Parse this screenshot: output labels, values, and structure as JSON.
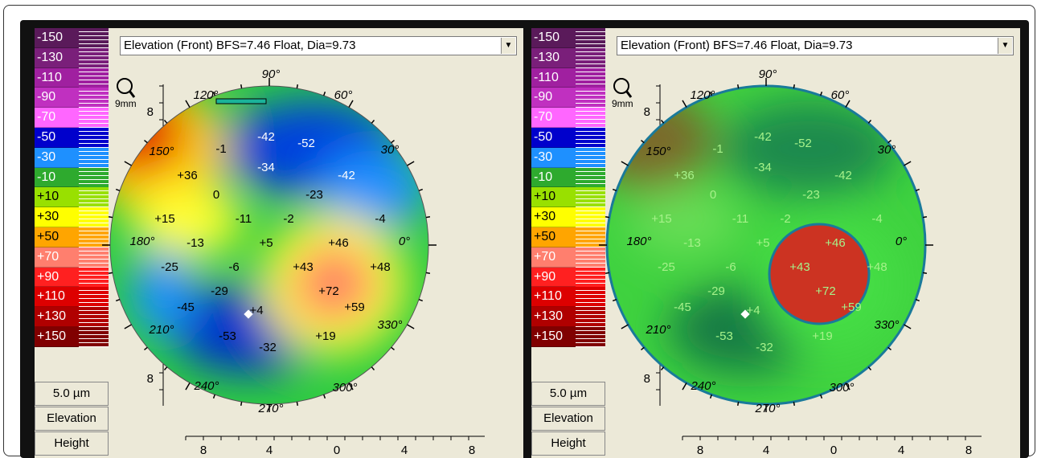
{
  "panels": [
    {
      "title": "Elevation (Front)  BFS=7.46 Float, Dia=9.73",
      "zoom_label": "9mm",
      "unit": "5.0 µm",
      "mode_label": "Elevation",
      "height_label": "Height",
      "scale": [
        "-150",
        "-130",
        "-110",
        "-90",
        "-70",
        "-50",
        "-30",
        "-10",
        "+10",
        "+30",
        "+50",
        "+70",
        "+90",
        "+110",
        "+130",
        "+150"
      ],
      "scale_colors": [
        "#5a1a5a",
        "#7a1f7a",
        "#a020a0",
        "#c030c0",
        "#ff66ff",
        "#0000cc",
        "#1e90ff",
        "#2eaa2e",
        "#99e000",
        "#ffff00",
        "#ffa500",
        "#ff7f6e",
        "#ff2020",
        "#dd0000",
        "#b00000",
        "#800000"
      ],
      "axis_ticks_vertical": [
        "8",
        "4",
        "0",
        "4",
        "8"
      ],
      "axis_ticks_horizontal": [
        "8",
        "4",
        "0",
        "4",
        "8"
      ],
      "angles": [
        "90°",
        "120°",
        "150°",
        "180°",
        "210°",
        "240°",
        "270°",
        "300°",
        "330°",
        "0°",
        "30°",
        "60°"
      ],
      "values": [
        "-42",
        "-52",
        "-1",
        "-34",
        "-42",
        "+36",
        "0",
        "-23",
        "+15",
        "-11",
        "-2",
        "-4",
        "-13",
        "+5",
        "+46",
        "-25",
        "-6",
        "+43",
        "+48",
        "-29",
        "+72",
        "-45",
        "+4",
        "+59",
        "-53",
        "-32",
        "+19"
      ]
    },
    {
      "title": "Elevation (Front)  BFS=7.46 Float, Dia=9.73",
      "zoom_label": "9mm",
      "unit": "5.0 µm",
      "mode_label": "Elevation",
      "height_label": "Height",
      "scale": [
        "-150",
        "-130",
        "-110",
        "-90",
        "-70",
        "-50",
        "-30",
        "-10",
        "+10",
        "+30",
        "+50",
        "+70",
        "+90",
        "+110",
        "+130",
        "+150"
      ],
      "scale_colors": [
        "#5a1a5a",
        "#7a1f7a",
        "#a020a0",
        "#c030c0",
        "#ff66ff",
        "#0000cc",
        "#1e90ff",
        "#2eaa2e",
        "#99e000",
        "#ffff00",
        "#ffa500",
        "#ff7f6e",
        "#ff2020",
        "#dd0000",
        "#b00000",
        "#800000"
      ],
      "axis_ticks_vertical": [
        "8",
        "4",
        "0",
        "4",
        "8"
      ],
      "axis_ticks_horizontal": [
        "8",
        "4",
        "0",
        "4",
        "8"
      ],
      "angles": [
        "90°",
        "120°",
        "150°",
        "180°",
        "210°",
        "240°",
        "270°",
        "300°",
        "330°",
        "0°",
        "30°",
        "60°"
      ],
      "values": [
        "-42",
        "-52",
        "-1",
        "-34",
        "-42",
        "+36",
        "0",
        "-23",
        "+15",
        "-11",
        "-2",
        "-4",
        "-13",
        "+5",
        "+46",
        "-25",
        "-6",
        "+43",
        "+48",
        "-29",
        "+72",
        "-45",
        "+4",
        "+59",
        "-53",
        "-32",
        "+19"
      ]
    }
  ]
}
